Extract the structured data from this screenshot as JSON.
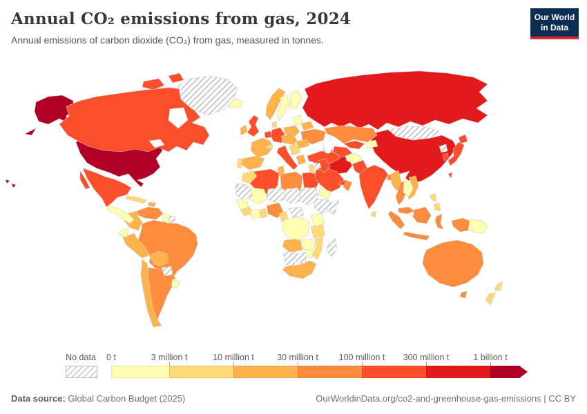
{
  "header": {
    "title": "Annual CO₂ emissions from gas, 2024",
    "subtitle": "Annual emissions of carbon dioxide (CO₂) from gas, measured in tonnes.",
    "logo_line1": "Our World",
    "logo_line2": "in Data"
  },
  "legend": {
    "no_data_label": "No data",
    "start_label": "0 t",
    "bins": [
      {
        "id": "0-3M",
        "boundary_label": "3 million t",
        "color": "#ffffb2"
      },
      {
        "id": "3-10M",
        "boundary_label": "10 million t",
        "color": "#fed976"
      },
      {
        "id": "10-30M",
        "boundary_label": "30 million t",
        "color": "#feb24c"
      },
      {
        "id": "30-100M",
        "boundary_label": "100 million t",
        "color": "#fd8d3c"
      },
      {
        "id": "100-300M",
        "boundary_label": "300 million t",
        "color": "#fc4e2a"
      },
      {
        "id": "300M-1B",
        "boundary_label": "1 billion t",
        "color": "#e31a1c"
      },
      {
        "id": "1B+",
        "boundary_label": "",
        "color": "#b10026"
      }
    ]
  },
  "footer": {
    "source_label": "Data source:",
    "source": "Global Carbon Budget (2025)",
    "right": "OurWorldinData.org/co2-and-greenhouse-gas-emissions | CC BY"
  },
  "chart_data": {
    "type": "heatmap",
    "subtype": "world-choropleth",
    "title": "Annual CO₂ emissions from gas, 2024",
    "unit": "tonnes of CO₂ from gas",
    "year": 2024,
    "legend_position": "bottom",
    "bin_colors": {
      "0-3M": "#ffffb2",
      "3-10M": "#fed976",
      "10-30M": "#feb24c",
      "30-100M": "#fd8d3c",
      "100-300M": "#fc4e2a",
      "300M-1B": "#e31a1c",
      "1B+": "#b10026",
      "no-data": "hatched"
    },
    "regions": [
      {
        "key": "united-states",
        "name": "United States",
        "bin": "1B+"
      },
      {
        "key": "russia",
        "name": "Russia",
        "bin": "300M-1B"
      },
      {
        "key": "china",
        "name": "China",
        "bin": "300M-1B"
      },
      {
        "key": "iran",
        "name": "Iran",
        "bin": "300M-1B"
      },
      {
        "key": "canada",
        "name": "Canada",
        "bin": "100-300M"
      },
      {
        "key": "mexico",
        "name": "Mexico",
        "bin": "100-300M"
      },
      {
        "key": "united-kingdom",
        "name": "United Kingdom",
        "bin": "100-300M"
      },
      {
        "key": "germany",
        "name": "Germany",
        "bin": "100-300M"
      },
      {
        "key": "netherlands",
        "name": "Netherlands",
        "bin": "100-300M"
      },
      {
        "key": "italy",
        "name": "Italy",
        "bin": "100-300M"
      },
      {
        "key": "turkey",
        "name": "Turkey",
        "bin": "100-300M"
      },
      {
        "key": "egypt",
        "name": "Egypt",
        "bin": "100-300M"
      },
      {
        "key": "algeria",
        "name": "Algeria",
        "bin": "100-300M"
      },
      {
        "key": "saudi-arabia",
        "name": "Saudi Arabia",
        "bin": "100-300M"
      },
      {
        "key": "iraq",
        "name": "Iraq",
        "bin": "100-300M"
      },
      {
        "key": "uae",
        "name": "United Arab Emirates",
        "bin": "100-300M"
      },
      {
        "key": "uzbekistan",
        "name": "Uzbekistan",
        "bin": "100-300M"
      },
      {
        "key": "turkmenistan",
        "name": "Turkmenistan",
        "bin": "100-300M"
      },
      {
        "key": "caucasus",
        "name": "Azerbaijan",
        "bin": "100-300M"
      },
      {
        "key": "pakistan",
        "name": "Pakistan",
        "bin": "100-300M"
      },
      {
        "key": "india",
        "name": "India",
        "bin": "100-300M"
      },
      {
        "key": "japan",
        "name": "Japan",
        "bin": "100-300M"
      },
      {
        "key": "south-korea",
        "name": "South Korea",
        "bin": "100-300M"
      },
      {
        "key": "taiwan",
        "name": "Taiwan",
        "bin": "100-300M"
      },
      {
        "key": "kazakhstan",
        "name": "Kazakhstan",
        "bin": "30-100M"
      },
      {
        "key": "ukraine",
        "name": "Ukraine",
        "bin": "30-100M"
      },
      {
        "key": "venezuela",
        "name": "Venezuela",
        "bin": "30-100M"
      },
      {
        "key": "brazil",
        "name": "Brazil",
        "bin": "30-100M"
      },
      {
        "key": "argentina",
        "name": "Argentina",
        "bin": "30-100M"
      },
      {
        "key": "libya",
        "name": "Libya",
        "bin": "30-100M"
      },
      {
        "key": "nigeria",
        "name": "Nigeria",
        "bin": "30-100M"
      },
      {
        "key": "oman",
        "name": "Oman",
        "bin": "30-100M"
      },
      {
        "key": "bangladesh",
        "name": "Bangladesh",
        "bin": "30-100M"
      },
      {
        "key": "thailand",
        "name": "Thailand",
        "bin": "30-100M"
      },
      {
        "key": "malaysia",
        "name": "Malaysia",
        "bin": "30-100M"
      },
      {
        "key": "indonesia",
        "name": "Indonesia",
        "bin": "30-100M"
      },
      {
        "key": "australia",
        "name": "Australia",
        "bin": "30-100M"
      },
      {
        "key": "norway",
        "name": "Norway",
        "bin": "10-30M"
      },
      {
        "key": "ireland",
        "name": "Ireland",
        "bin": "10-30M"
      },
      {
        "key": "france",
        "name": "France",
        "bin": "10-30M"
      },
      {
        "key": "spain",
        "name": "Spain",
        "bin": "10-30M"
      },
      {
        "key": "poland",
        "name": "Poland",
        "bin": "10-30M"
      },
      {
        "key": "belarus",
        "name": "Belarus",
        "bin": "10-30M"
      },
      {
        "key": "romania",
        "name": "Romania",
        "bin": "10-30M"
      },
      {
        "key": "central-europe",
        "name": "Austria / Hungary",
        "bin": "10-30M"
      },
      {
        "key": "greece",
        "name": "Greece",
        "bin": "10-30M"
      },
      {
        "key": "colombia",
        "name": "Colombia",
        "bin": "10-30M"
      },
      {
        "key": "peru",
        "name": "Peru",
        "bin": "10-30M"
      },
      {
        "key": "chile",
        "name": "Chile",
        "bin": "10-30M"
      },
      {
        "key": "bolivia",
        "name": "Bolivia",
        "bin": "10-30M"
      },
      {
        "key": "vietnam",
        "name": "Vietnam",
        "bin": "10-30M"
      },
      {
        "key": "myanmar",
        "name": "Myanmar",
        "bin": "10-30M"
      },
      {
        "key": "angola",
        "name": "Angola",
        "bin": "10-30M"
      },
      {
        "key": "south-africa",
        "name": "South Africa",
        "bin": "10-30M"
      },
      {
        "key": "tunisia",
        "name": "Tunisia",
        "bin": "10-30M"
      },
      {
        "key": "dominican-republic",
        "name": "Dominican Republic",
        "bin": "10-30M"
      },
      {
        "key": "portugal",
        "name": "Portugal",
        "bin": "3-10M"
      },
      {
        "key": "switzerland",
        "name": "Switzerland",
        "bin": "3-10M"
      },
      {
        "key": "denmark",
        "name": "Denmark",
        "bin": "3-10M"
      },
      {
        "key": "balkans",
        "name": "Balkans",
        "bin": "3-10M"
      },
      {
        "key": "levant",
        "name": "Israel / Jordan",
        "bin": "3-10M"
      },
      {
        "key": "morocco",
        "name": "Morocco",
        "bin": "3-10M"
      },
      {
        "key": "ghana",
        "name": "Ghana",
        "bin": "3-10M"
      },
      {
        "key": "guinea",
        "name": "Guinea",
        "bin": "3-10M"
      },
      {
        "key": "cameroon",
        "name": "Cameroon",
        "bin": "3-10M"
      },
      {
        "key": "tanzania",
        "name": "Tanzania",
        "bin": "3-10M"
      },
      {
        "key": "mozambique",
        "name": "Mozambique",
        "bin": "3-10M"
      },
      {
        "key": "philippines",
        "name": "Philippines",
        "bin": "3-10M"
      },
      {
        "key": "new-zealand",
        "name": "New Zealand",
        "bin": "3-10M"
      },
      {
        "key": "cuba",
        "name": "Cuba",
        "bin": "3-10M"
      },
      {
        "key": "sri-lanka",
        "name": "Sri Lanka",
        "bin": "3-10M"
      },
      {
        "key": "sweden",
        "name": "Sweden",
        "bin": "0-3M"
      },
      {
        "key": "finland",
        "name": "Finland",
        "bin": "0-3M"
      },
      {
        "key": "iceland",
        "name": "Iceland",
        "bin": "0-3M"
      },
      {
        "key": "baltics",
        "name": "Baltic states",
        "bin": "0-3M"
      },
      {
        "key": "ecuador",
        "name": "Ecuador",
        "bin": "0-3M"
      },
      {
        "key": "uruguay",
        "name": "Uruguay",
        "bin": "0-3M"
      },
      {
        "key": "guyana",
        "name": "Guyana",
        "bin": "0-3M"
      },
      {
        "key": "central-america",
        "name": "Central America",
        "bin": "0-3M"
      },
      {
        "key": "afghanistan",
        "name": "Afghanistan",
        "bin": "0-3M"
      },
      {
        "key": "kyrgyzstan-tajikistan",
        "name": "Kyrgyzstan / Tajikistan",
        "bin": "0-3M"
      },
      {
        "key": "yemen",
        "name": "Yemen",
        "bin": "0-3M"
      },
      {
        "key": "east-africa",
        "name": "Kenya / Uganda",
        "bin": "0-3M"
      },
      {
        "key": "drc",
        "name": "Democratic Republic of Congo",
        "bin": "0-3M"
      },
      {
        "key": "zambia",
        "name": "Zambia",
        "bin": "0-3M"
      },
      {
        "key": "zimbabwe",
        "name": "Zimbabwe",
        "bin": "0-3M"
      },
      {
        "key": "mali",
        "name": "Mali",
        "bin": "0-3M"
      },
      {
        "key": "senegal",
        "name": "Senegal",
        "bin": "0-3M"
      },
      {
        "key": "ivory-coast",
        "name": "Côte d'Ivoire",
        "bin": "0-3M"
      },
      {
        "key": "laos-cambodia",
        "name": "Laos / Cambodia",
        "bin": "0-3M"
      },
      {
        "key": "papua-new-guinea",
        "name": "Papua New Guinea",
        "bin": "0-3M"
      },
      {
        "key": "greenland",
        "name": "Greenland",
        "bin": "no-data"
      },
      {
        "key": "mongolia",
        "name": "Mongolia",
        "bin": "no-data"
      },
      {
        "key": "north-korea",
        "name": "North Korea",
        "bin": "no-data"
      },
      {
        "key": "paraguay",
        "name": "Paraguay",
        "bin": "no-data"
      },
      {
        "key": "suriname",
        "name": "Suriname",
        "bin": "no-data"
      },
      {
        "key": "western-sahara",
        "name": "Western Sahara",
        "bin": "no-data"
      },
      {
        "key": "mauritania",
        "name": "Mauritania",
        "bin": "no-data"
      },
      {
        "key": "niger",
        "name": "Niger",
        "bin": "no-data"
      },
      {
        "key": "chad",
        "name": "Chad",
        "bin": "no-data"
      },
      {
        "key": "sudan",
        "name": "Sudan",
        "bin": "no-data"
      },
      {
        "key": "ethiopia",
        "name": "Ethiopia",
        "bin": "no-data"
      },
      {
        "key": "somalia",
        "name": "Somalia",
        "bin": "no-data"
      },
      {
        "key": "central-african-republic",
        "name": "Central African Republic",
        "bin": "no-data"
      },
      {
        "key": "namibia",
        "name": "Namibia",
        "bin": "no-data"
      },
      {
        "key": "botswana",
        "name": "Botswana",
        "bin": "no-data"
      },
      {
        "key": "madagascar",
        "name": "Madagascar",
        "bin": "no-data"
      },
      {
        "key": "syria",
        "name": "Syria",
        "bin": "no-data"
      }
    ]
  }
}
